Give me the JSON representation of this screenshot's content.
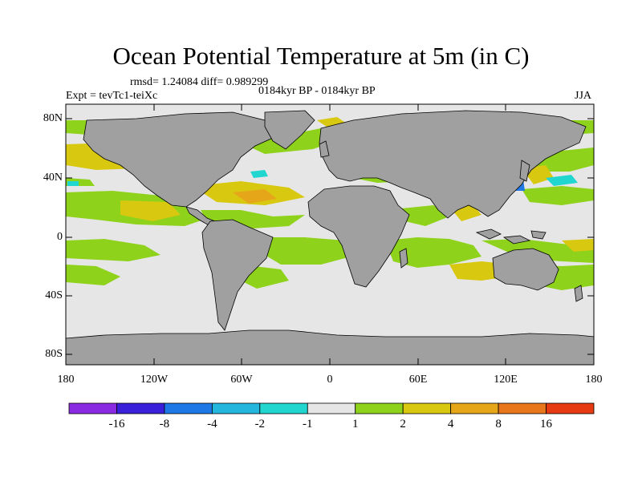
{
  "title": "Ocean Potential Temperature at 5m (in C)",
  "stats": "rmsd= 1.24084 diff= 0.989299",
  "expt": "Expt = tevTc1-teiXc",
  "period": "0184kyr BP - 0184kyr BP",
  "season": "JJA",
  "lat_labels": [
    "80N",
    "40N",
    "0",
    "40S",
    "80S"
  ],
  "lon_labels": [
    "180",
    "120W",
    "60W",
    "0",
    "60E",
    "120E",
    "180"
  ],
  "colorbar": {
    "colors": [
      "#8a2be2",
      "#3a20d8",
      "#1e78e6",
      "#25b6de",
      "#22d6d0",
      "#e6e6e6",
      "#8fd21b",
      "#d8c810",
      "#e6a61a",
      "#e8761a",
      "#e63a12"
    ],
    "labels": [
      "-16",
      "-8",
      "-4",
      "-2",
      "-1",
      "1",
      "2",
      "4",
      "8",
      "16"
    ]
  },
  "colors": {
    "land": "#a0a0a0",
    "ocean_neutral": "#e6e6e6",
    "warm_green": "#8fd21b",
    "warm_yellow": "#d8c810",
    "warm_orange": "#e6a61a",
    "cool_cyan": "#22d6d0"
  }
}
